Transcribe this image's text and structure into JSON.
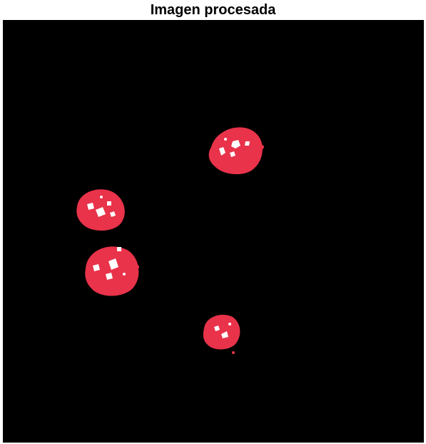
{
  "title": "Imagen procesada",
  "colors": {
    "background": "#000000",
    "segmented_object": "#e8334a",
    "holes": "#ffffff"
  },
  "segmented_objects": [
    {
      "name": "blob-top-right"
    },
    {
      "name": "blob-mid-left-upper"
    },
    {
      "name": "blob-mid-left-lower"
    },
    {
      "name": "blob-bottom-small"
    }
  ]
}
